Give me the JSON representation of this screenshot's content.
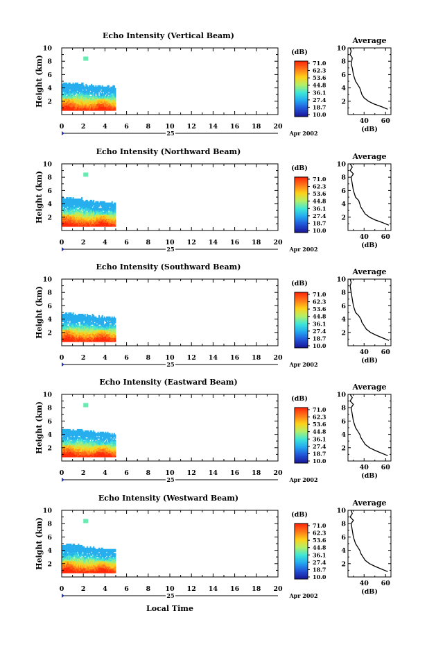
{
  "figure": {
    "x_axis_title": "Local Time",
    "date_label": "Apr 2002",
    "day_label": "25",
    "colorbar_unit": "(dB)",
    "colorbar_ticks": [
      "71.0",
      "62.3",
      "53.6",
      "44.8",
      "36.1",
      "27.4",
      "18.7",
      "10.0"
    ],
    "colorbar_colors": [
      "#ff2a0a",
      "#ff7a1a",
      "#ffd21a",
      "#b2f06a",
      "#3fe6d8",
      "#23a8f0",
      "#2255d8",
      "#1a1a9a"
    ],
    "avg_title": "Average",
    "avg_xlabel": "(dB)"
  },
  "chart_data": [
    {
      "type": "heatmap",
      "title": "Echo Intensity (Vertical Beam)",
      "xlabel": "",
      "ylabel": "Height (km)",
      "xlim": [
        0,
        20
      ],
      "ylim": [
        0,
        10
      ],
      "x_ticks": [
        0,
        2,
        4,
        6,
        8,
        10,
        12,
        14,
        16,
        18,
        20
      ],
      "y_ticks": [
        2,
        4,
        6,
        8,
        10
      ],
      "data_extent_hours": [
        0,
        5
      ],
      "echo_top_km": [
        4.7,
        4.6,
        4.3,
        4.2,
        4.1,
        4.0
      ],
      "isolated_echo": {
        "time": 2.2,
        "height": 8.4
      },
      "colorbar": {
        "min": 10.0,
        "max": 71.0,
        "unit": "dB"
      },
      "average_profile": {
        "xlim": [
          25,
          65
        ],
        "x_ticks": [
          40,
          60
        ],
        "ylim": [
          0,
          10
        ],
        "y_ticks": [
          2,
          4,
          6,
          8,
          10
        ],
        "height_km": [
          0.8,
          1.2,
          1.6,
          2.0,
          2.5,
          3.0,
          3.5,
          4.0,
          4.5,
          5.0,
          6.0,
          7.0,
          7.5,
          8.5,
          9.0,
          9.5,
          10.0
        ],
        "db": [
          62,
          56,
          49,
          44,
          40,
          38,
          37,
          36,
          34,
          32,
          30,
          29,
          28,
          29,
          27,
          28,
          27
        ]
      }
    },
    {
      "type": "heatmap",
      "title": "Echo Intensity (Northward Beam)",
      "xlabel": "",
      "ylabel": "Height (km)",
      "xlim": [
        0,
        20
      ],
      "ylim": [
        0,
        10
      ],
      "x_ticks": [
        0,
        2,
        4,
        6,
        8,
        10,
        12,
        14,
        16,
        18,
        20
      ],
      "y_ticks": [
        2,
        4,
        6,
        8,
        10
      ],
      "data_extent_hours": [
        0,
        5
      ],
      "echo_top_km": [
        4.8,
        4.7,
        4.4,
        4.3,
        4.1,
        4.0
      ],
      "isolated_echo": {
        "time": 2.2,
        "height": 8.4
      },
      "colorbar": {
        "min": 10.0,
        "max": 71.0,
        "unit": "dB"
      },
      "average_profile": {
        "xlim": [
          25,
          65
        ],
        "x_ticks": [
          40,
          60
        ],
        "ylim": [
          0,
          10
        ],
        "y_ticks": [
          2,
          4,
          6,
          8,
          10
        ],
        "height_km": [
          0.8,
          1.2,
          1.6,
          2.0,
          2.5,
          3.0,
          3.5,
          4.0,
          4.5,
          5.0,
          6.0,
          7.0,
          8.0,
          8.5,
          9.0,
          9.5,
          10.0
        ],
        "db": [
          63,
          57,
          50,
          45,
          41,
          39,
          37,
          36,
          35,
          32,
          30,
          29,
          28,
          30,
          27,
          29,
          27
        ]
      }
    },
    {
      "type": "heatmap",
      "title": "Echo Intensity (Southward Beam)",
      "xlabel": "",
      "ylabel": "Height (km)",
      "xlim": [
        0,
        20
      ],
      "ylim": [
        0,
        10
      ],
      "x_ticks": [
        0,
        2,
        4,
        6,
        8,
        10,
        12,
        14,
        16,
        18,
        20
      ],
      "y_ticks": [
        2,
        4,
        6,
        8,
        10
      ],
      "data_extent_hours": [
        0,
        5
      ],
      "echo_top_km": [
        4.8,
        4.7,
        4.5,
        4.3,
        4.2,
        4.1
      ],
      "isolated_echo": null,
      "colorbar": {
        "min": 10.0,
        "max": 71.0,
        "unit": "dB"
      },
      "average_profile": {
        "xlim": [
          25,
          65
        ],
        "x_ticks": [
          40,
          60
        ],
        "ylim": [
          0,
          10
        ],
        "y_ticks": [
          2,
          4,
          6,
          8,
          10
        ],
        "height_km": [
          0.8,
          1.2,
          1.6,
          2.0,
          2.5,
          3.0,
          3.5,
          4.0,
          4.5,
          5.0,
          6.0,
          7.0,
          8.0,
          9.0,
          9.5,
          10.0
        ],
        "db": [
          63,
          57,
          51,
          46,
          42,
          40,
          38,
          37,
          35,
          32,
          30,
          29,
          28,
          27,
          28,
          27
        ]
      }
    },
    {
      "type": "heatmap",
      "title": "Echo Intensity (Eastward Beam)",
      "xlabel": "",
      "ylabel": "Height (km)",
      "xlim": [
        0,
        20
      ],
      "ylim": [
        0,
        10
      ],
      "x_ticks": [
        0,
        2,
        4,
        6,
        8,
        10,
        12,
        14,
        16,
        18,
        20
      ],
      "y_ticks": [
        2,
        4,
        6,
        8,
        10
      ],
      "data_extent_hours": [
        0,
        5
      ],
      "echo_top_km": [
        4.7,
        4.6,
        4.4,
        4.2,
        4.1,
        4.0
      ],
      "isolated_echo": {
        "time": 2.2,
        "height": 8.4
      },
      "colorbar": {
        "min": 10.0,
        "max": 71.0,
        "unit": "dB"
      },
      "average_profile": {
        "xlim": [
          25,
          65
        ],
        "x_ticks": [
          40,
          60
        ],
        "ylim": [
          0,
          10
        ],
        "y_ticks": [
          2,
          4,
          6,
          8,
          10
        ],
        "height_km": [
          0.8,
          1.2,
          1.6,
          2.0,
          2.5,
          3.0,
          3.5,
          4.0,
          4.5,
          5.0,
          6.0,
          7.0,
          8.0,
          8.5,
          9.0,
          9.5,
          10.0
        ],
        "db": [
          62,
          56,
          50,
          45,
          41,
          39,
          37,
          36,
          34,
          32,
          30,
          29,
          28,
          30,
          27,
          29,
          27
        ]
      }
    },
    {
      "type": "heatmap",
      "title": "Echo Intensity (Westward Beam)",
      "xlabel": "Local Time",
      "ylabel": "Height (km)",
      "xlim": [
        0,
        20
      ],
      "ylim": [
        0,
        10
      ],
      "x_ticks": [
        0,
        2,
        4,
        6,
        8,
        10,
        12,
        14,
        16,
        18,
        20
      ],
      "y_ticks": [
        2,
        4,
        6,
        8,
        10
      ],
      "data_extent_hours": [
        0,
        5
      ],
      "echo_top_km": [
        4.8,
        4.7,
        4.4,
        4.2,
        4.1,
        4.0
      ],
      "isolated_echo": {
        "time": 2.2,
        "height": 8.4
      },
      "colorbar": {
        "min": 10.0,
        "max": 71.0,
        "unit": "dB"
      },
      "average_profile": {
        "xlim": [
          25,
          65
        ],
        "x_ticks": [
          40,
          60
        ],
        "ylim": [
          0,
          10
        ],
        "y_ticks": [
          2,
          4,
          6,
          8,
          10
        ],
        "height_km": [
          0.8,
          1.2,
          1.6,
          2.0,
          2.5,
          3.0,
          3.5,
          4.0,
          4.5,
          5.0,
          6.0,
          7.0,
          8.0,
          8.5,
          9.0,
          9.5,
          10.0
        ],
        "db": [
          62,
          56,
          50,
          45,
          41,
          39,
          37,
          36,
          34,
          32,
          30,
          29,
          28,
          30,
          27,
          29,
          28
        ]
      }
    }
  ]
}
